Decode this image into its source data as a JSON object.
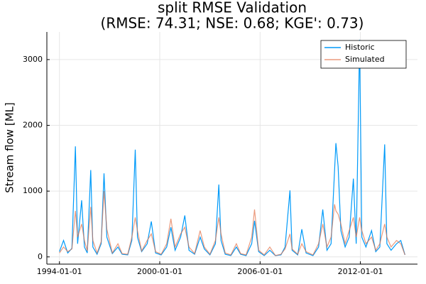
{
  "chart_data": {
    "type": "line",
    "title": [
      "split RMSE Validation",
      "(RMSE: 74.31; NSE: 0.68; KGE': 0.73)"
    ],
    "y_label": "Stream flow [ML]",
    "x": [
      "1994-01-01",
      "1994-04-01",
      "1994-07-01",
      "1994-10-01",
      "1994-12-15",
      "1995-02-01",
      "1995-05-01",
      "1995-07-01",
      "1995-09-01",
      "1995-11-15",
      "1996-01-01",
      "1996-04-01",
      "1996-07-01",
      "1996-09-01",
      "1996-11-01",
      "1997-03-01",
      "1997-07-01",
      "1997-10-01",
      "1998-02-01",
      "1998-05-01",
      "1998-07-15",
      "1998-09-01",
      "1998-12-01",
      "1999-04-01",
      "1999-07-01",
      "1999-10-01",
      "2000-02-01",
      "2000-06-01",
      "2000-09-01",
      "2000-12-01",
      "2001-04-01",
      "2001-07-01",
      "2001-10-01",
      "2002-02-01",
      "2002-06-01",
      "2002-09-01",
      "2003-01-01",
      "2003-05-01",
      "2003-07-15",
      "2003-09-01",
      "2003-12-01",
      "2004-04-01",
      "2004-08-01",
      "2004-11-01",
      "2005-03-01",
      "2005-07-01",
      "2005-09-01",
      "2005-12-01",
      "2006-04-01",
      "2006-08-01",
      "2006-12-01",
      "2007-04-01",
      "2007-07-01",
      "2007-10-15",
      "2007-12-01",
      "2008-04-01",
      "2008-07-01",
      "2008-10-01",
      "2009-03-01",
      "2009-07-01",
      "2009-10-01",
      "2010-01-01",
      "2010-04-01",
      "2010-06-15",
      "2010-07-15",
      "2010-09-01",
      "2010-11-01",
      "2011-02-01",
      "2011-05-01",
      "2011-08-01",
      "2011-10-01",
      "2011-12-15",
      "2012-02-01",
      "2012-05-01",
      "2012-09-01",
      "2012-12-01",
      "2013-03-01",
      "2013-06-15",
      "2013-08-01",
      "2013-11-01",
      "2014-03-01",
      "2014-06-01",
      "2014-09-01"
    ],
    "series": [
      {
        "name": "Historic",
        "color": "#009af9",
        "opacity": 1,
        "values": [
          80,
          250,
          60,
          130,
          1680,
          200,
          860,
          150,
          60,
          1320,
          150,
          40,
          200,
          1270,
          300,
          50,
          150,
          40,
          30,
          250,
          1630,
          300,
          80,
          200,
          540,
          60,
          30,
          150,
          450,
          100,
          300,
          630,
          100,
          40,
          300,
          120,
          30,
          200,
          1100,
          250,
          40,
          20,
          150,
          40,
          20,
          200,
          550,
          80,
          20,
          100,
          20,
          30,
          150,
          1010,
          100,
          30,
          420,
          60,
          20,
          150,
          720,
          100,
          200,
          1310,
          1730,
          1380,
          400,
          150,
          300,
          1190,
          200,
          3300,
          300,
          150,
          400,
          80,
          150,
          1710,
          200,
          100,
          200,
          250,
          30
        ]
      },
      {
        "name": "Simulated",
        "color": "#e26f46",
        "opacity": 0.7,
        "values": [
          60,
          150,
          80,
          120,
          700,
          300,
          500,
          250,
          90,
          760,
          250,
          60,
          230,
          1000,
          420,
          60,
          200,
          50,
          40,
          300,
          600,
          400,
          90,
          250,
          350,
          80,
          40,
          200,
          580,
          150,
          350,
          450,
          150,
          50,
          400,
          150,
          40,
          250,
          600,
          350,
          60,
          30,
          200,
          50,
          30,
          300,
          720,
          100,
          30,
          150,
          20,
          40,
          120,
          350,
          120,
          40,
          200,
          80,
          30,
          200,
          500,
          150,
          300,
          800,
          700,
          650,
          500,
          200,
          400,
          600,
          300,
          600,
          400,
          200,
          300,
          100,
          200,
          500,
          300,
          150,
          250,
          200,
          30
        ]
      }
    ],
    "xlim": [
      "1993-04-01",
      "2015-06-01"
    ],
    "xticks": [
      "1994-01-01",
      "2000-01-01",
      "2006-01-01",
      "2012-01-01"
    ],
    "ylim": [
      -110,
      3420
    ],
    "yticks": [
      0,
      1000,
      2000,
      3000
    ],
    "grid": true,
    "legend": "top-right"
  }
}
